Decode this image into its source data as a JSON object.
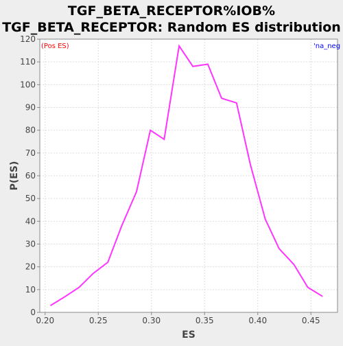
{
  "chart_data": {
    "type": "line",
    "title_lines": [
      "TGF_BETA_RECEPTOR%IOB%",
      "TGF_BETA_RECEPTOR: Random ES distribution"
    ],
    "xlabel": "ES",
    "ylabel": "P(ES)",
    "xlim": [
      0.195,
      0.475
    ],
    "ylim": [
      0,
      120
    ],
    "x_ticks": [
      "0.20",
      "0.25",
      "0.30",
      "0.35",
      "0.40",
      "0.45"
    ],
    "y_ticks": [
      "0",
      "10",
      "20",
      "30",
      "40",
      "50",
      "60",
      "70",
      "80",
      "90",
      "100",
      "110",
      "120"
    ],
    "grid": true,
    "legend": {
      "left": "(Pos ES)",
      "right": "'na_neg"
    },
    "colors": {
      "line": "#ff33ff",
      "legend_left": "#ff0000",
      "legend_right": "#0000ff",
      "background": "#ffffff",
      "grid": "#dddddd",
      "axis": "#888888"
    },
    "series": [
      {
        "name": "random ES",
        "x": [
          0.205,
          0.219,
          0.232,
          0.245,
          0.259,
          0.272,
          0.286,
          0.299,
          0.312,
          0.326,
          0.339,
          0.353,
          0.366,
          0.38,
          0.393,
          0.407,
          0.42,
          0.434,
          0.447,
          0.461
        ],
        "y": [
          3,
          7,
          11,
          17,
          22,
          38,
          53,
          80,
          76,
          117,
          108,
          109,
          94,
          92,
          65,
          41,
          28,
          21,
          11,
          7
        ]
      }
    ]
  }
}
